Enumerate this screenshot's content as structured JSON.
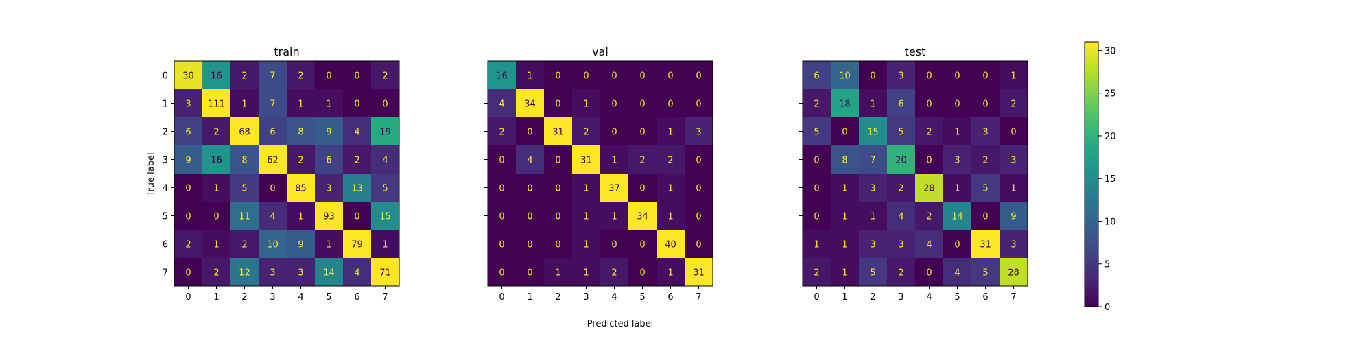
{
  "chart_data": {
    "type": "heatmap",
    "colormap": "viridis",
    "xlabel": "Predicted label",
    "ylabel": "True label",
    "tick_labels": [
      "0",
      "1",
      "2",
      "3",
      "4",
      "5",
      "6",
      "7"
    ],
    "colorbar": {
      "min": 0,
      "max": 31,
      "ticks": [
        0,
        5,
        10,
        15,
        20,
        25,
        30
      ]
    },
    "panels": [
      {
        "title": "train",
        "matrix": [
          [
            30,
            16,
            2,
            7,
            2,
            0,
            0,
            2
          ],
          [
            3,
            111,
            1,
            7,
            1,
            1,
            0,
            0
          ],
          [
            6,
            2,
            68,
            6,
            8,
            9,
            4,
            19
          ],
          [
            9,
            16,
            8,
            62,
            2,
            6,
            2,
            4
          ],
          [
            0,
            1,
            5,
            0,
            85,
            3,
            13,
            5
          ],
          [
            0,
            0,
            11,
            4,
            1,
            93,
            0,
            15
          ],
          [
            2,
            1,
            2,
            10,
            9,
            1,
            79,
            1
          ],
          [
            0,
            2,
            12,
            3,
            3,
            14,
            4,
            71
          ]
        ]
      },
      {
        "title": "val",
        "matrix": [
          [
            16,
            1,
            0,
            0,
            0,
            0,
            0,
            0
          ],
          [
            4,
            34,
            0,
            1,
            0,
            0,
            0,
            0
          ],
          [
            2,
            0,
            31,
            2,
            0,
            0,
            1,
            3
          ],
          [
            0,
            4,
            0,
            31,
            1,
            2,
            2,
            0
          ],
          [
            0,
            0,
            0,
            1,
            37,
            0,
            1,
            0
          ],
          [
            0,
            0,
            0,
            1,
            1,
            34,
            1,
            0
          ],
          [
            0,
            0,
            0,
            1,
            0,
            0,
            40,
            0
          ],
          [
            0,
            0,
            1,
            1,
            2,
            0,
            1,
            31
          ]
        ]
      },
      {
        "title": "test",
        "matrix": [
          [
            6,
            10,
            0,
            3,
            0,
            0,
            0,
            1
          ],
          [
            2,
            18,
            1,
            6,
            0,
            0,
            0,
            2
          ],
          [
            5,
            0,
            15,
            5,
            2,
            1,
            3,
            0
          ],
          [
            0,
            8,
            7,
            20,
            0,
            3,
            2,
            3
          ],
          [
            0,
            1,
            3,
            2,
            28,
            1,
            5,
            1
          ],
          [
            0,
            1,
            1,
            4,
            2,
            14,
            0,
            9
          ],
          [
            1,
            1,
            3,
            3,
            4,
            0,
            31,
            3
          ],
          [
            2,
            1,
            5,
            2,
            0,
            4,
            5,
            28
          ]
        ]
      }
    ]
  }
}
